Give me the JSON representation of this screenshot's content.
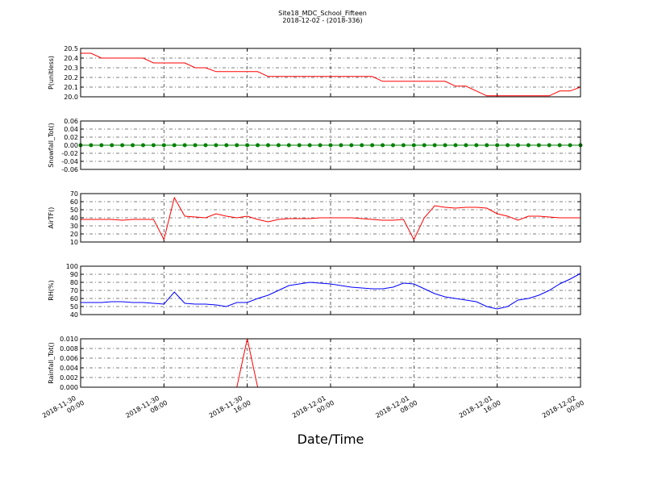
{
  "chart_data": [
    {
      "type": "line",
      "title": "Site18_MDC_School_Fifteen",
      "subtitle": "2018-12-02 - (2018-336)",
      "ylabel": "P(unitless)",
      "xlim": [
        "2018-11-30 00:00",
        "2018-12-02 00:00"
      ],
      "xticks": [
        "2018-11-30 00:00",
        "2018-11-30 08:00",
        "2018-11-30 16:00",
        "2018-12-01 00:00",
        "2018-12-01 08:00",
        "2018-12-01 16:00",
        "2018-12-02 00:00"
      ],
      "ylim": [
        20.0,
        20.5
      ],
      "yticks": [
        {
          "value": 20.0,
          "label": "20.0"
        },
        20.1,
        20.2,
        20.3,
        20.4,
        20.5
      ],
      "grid": true,
      "x": [
        "2018-11-30 00:00",
        "2018-11-30 01:00",
        "2018-11-30 02:00",
        "2018-11-30 03:00",
        "2018-11-30 04:00",
        "2018-11-30 05:00",
        "2018-11-30 06:00",
        "2018-11-30 07:00",
        "2018-11-30 08:00",
        "2018-11-30 09:00",
        "2018-11-30 10:00",
        "2018-11-30 11:00",
        "2018-11-30 12:00",
        "2018-11-30 13:00",
        "2018-11-30 14:00",
        "2018-11-30 15:00",
        "2018-11-30 16:00",
        "2018-11-30 17:00",
        "2018-11-30 18:00",
        "2018-11-30 19:00",
        "2018-11-30 20:00",
        "2018-11-30 21:00",
        "2018-11-30 22:00",
        "2018-11-30 23:00",
        "2018-12-01 00:00",
        "2018-12-01 01:00",
        "2018-12-01 02:00",
        "2018-12-01 03:00",
        "2018-12-01 04:00",
        "2018-12-01 05:00",
        "2018-12-01 06:00",
        "2018-12-01 07:00",
        "2018-12-01 08:00",
        "2018-12-01 09:00",
        "2018-12-01 10:00",
        "2018-12-01 11:00",
        "2018-12-01 12:00",
        "2018-12-01 13:00",
        "2018-12-01 14:00",
        "2018-12-01 15:00",
        "2018-12-01 16:00",
        "2018-12-01 17:00",
        "2018-12-01 18:00",
        "2018-12-01 19:00",
        "2018-12-01 20:00",
        "2018-12-01 21:00",
        "2018-12-01 22:00",
        "2018-12-01 23:00",
        "2018-12-02 00:00"
      ],
      "series": [
        {
          "name": "P",
          "color": "#ff0000",
          "values": [
            20.45,
            20.45,
            20.4,
            20.4,
            20.4,
            20.4,
            20.4,
            20.35,
            20.35,
            20.35,
            20.35,
            20.3,
            20.3,
            20.26,
            20.26,
            20.26,
            20.26,
            20.26,
            20.21,
            20.21,
            20.21,
            20.21,
            20.21,
            20.21,
            20.21,
            20.21,
            20.21,
            20.21,
            20.21,
            20.16,
            20.16,
            20.16,
            20.16,
            20.16,
            20.16,
            20.16,
            20.11,
            20.11,
            20.06,
            20.01,
            20.01,
            20.01,
            20.01,
            20.01,
            20.01,
            20.01,
            20.06,
            20.06,
            20.1
          ]
        }
      ]
    },
    {
      "type": "line",
      "ylabel": "Snowfall_Tot()",
      "marker": "o",
      "xlim": [
        "2018-11-30 00:00",
        "2018-12-02 00:00"
      ],
      "xticks": [
        "2018-11-30 00:00",
        "2018-11-30 08:00",
        "2018-11-30 16:00",
        "2018-12-01 00:00",
        "2018-12-01 08:00",
        "2018-12-01 16:00",
        "2018-12-02 00:00"
      ],
      "ylim": [
        -0.06,
        0.06
      ],
      "yticks": [
        -0.06,
        -0.04,
        -0.02,
        {
          "value": 0,
          "label": "0.00"
        },
        0.02,
        0.04,
        0.06
      ],
      "grid": true,
      "x": [
        "2018-11-30 00:00",
        "2018-11-30 01:00",
        "2018-11-30 02:00",
        "2018-11-30 03:00",
        "2018-11-30 04:00",
        "2018-11-30 05:00",
        "2018-11-30 06:00",
        "2018-11-30 07:00",
        "2018-11-30 08:00",
        "2018-11-30 09:00",
        "2018-11-30 10:00",
        "2018-11-30 11:00",
        "2018-11-30 12:00",
        "2018-11-30 13:00",
        "2018-11-30 14:00",
        "2018-11-30 15:00",
        "2018-11-30 16:00",
        "2018-11-30 17:00",
        "2018-11-30 18:00",
        "2018-11-30 19:00",
        "2018-11-30 20:00",
        "2018-11-30 21:00",
        "2018-11-30 22:00",
        "2018-11-30 23:00",
        "2018-12-01 00:00",
        "2018-12-01 01:00",
        "2018-12-01 02:00",
        "2018-12-01 03:00",
        "2018-12-01 04:00",
        "2018-12-01 05:00",
        "2018-12-01 06:00",
        "2018-12-01 07:00",
        "2018-12-01 08:00",
        "2018-12-01 09:00",
        "2018-12-01 10:00",
        "2018-12-01 11:00",
        "2018-12-01 12:00",
        "2018-12-01 13:00",
        "2018-12-01 14:00",
        "2018-12-01 15:00",
        "2018-12-01 16:00",
        "2018-12-01 17:00",
        "2018-12-01 18:00",
        "2018-12-01 19:00",
        "2018-12-01 20:00",
        "2018-12-01 21:00",
        "2018-12-01 22:00",
        "2018-12-01 23:00",
        "2018-12-02 00:00"
      ],
      "series": [
        {
          "name": "Snowfall_Tot",
          "color": "#008000",
          "values": [
            0,
            0,
            0,
            0,
            0,
            0,
            0,
            0,
            0,
            0,
            0,
            0,
            0,
            0,
            0,
            0,
            0,
            0,
            0,
            0,
            0,
            0,
            0,
            0,
            0,
            0,
            0,
            0,
            0,
            0,
            0,
            0,
            0,
            0,
            0,
            0,
            0,
            0,
            0,
            0,
            0,
            0,
            0,
            0,
            0,
            0,
            0,
            0,
            0
          ]
        }
      ]
    },
    {
      "type": "line",
      "ylabel": "AirTF()",
      "xlim": [
        "2018-11-30 00:00",
        "2018-12-02 00:00"
      ],
      "xticks": [
        "2018-11-30 00:00",
        "2018-11-30 08:00",
        "2018-11-30 16:00",
        "2018-12-01 00:00",
        "2018-12-01 08:00",
        "2018-12-01 16:00",
        "2018-12-02 00:00"
      ],
      "ylim": [
        10,
        70
      ],
      "yticks": [
        10,
        20,
        30,
        40,
        50,
        60,
        70
      ],
      "grid": true,
      "x": [
        "2018-11-30 00:00",
        "2018-11-30 01:00",
        "2018-11-30 02:00",
        "2018-11-30 03:00",
        "2018-11-30 04:00",
        "2018-11-30 05:00",
        "2018-11-30 06:00",
        "2018-11-30 07:00",
        "2018-11-30 08:00",
        "2018-11-30 09:00",
        "2018-11-30 10:00",
        "2018-11-30 11:00",
        "2018-11-30 12:00",
        "2018-11-30 13:00",
        "2018-11-30 14:00",
        "2018-11-30 15:00",
        "2018-11-30 16:00",
        "2018-11-30 17:00",
        "2018-11-30 18:00",
        "2018-11-30 19:00",
        "2018-11-30 20:00",
        "2018-11-30 21:00",
        "2018-11-30 22:00",
        "2018-11-30 23:00",
        "2018-12-01 00:00",
        "2018-12-01 01:00",
        "2018-12-01 02:00",
        "2018-12-01 03:00",
        "2018-12-01 04:00",
        "2018-12-01 05:00",
        "2018-12-01 06:00",
        "2018-12-01 07:00",
        "2018-12-01 08:00",
        "2018-12-01 09:00",
        "2018-12-01 10:00",
        "2018-12-01 11:00",
        "2018-12-01 12:00",
        "2018-12-01 13:00",
        "2018-12-01 14:00",
        "2018-12-01 15:00",
        "2018-12-01 16:00",
        "2018-12-01 17:00",
        "2018-12-01 18:00",
        "2018-12-01 19:00",
        "2018-12-01 20:00",
        "2018-12-01 21:00",
        "2018-12-01 22:00",
        "2018-12-01 23:00",
        "2018-12-02 00:00"
      ],
      "series": [
        {
          "name": "AirTF",
          "color": "#ff0000",
          "values": [
            38,
            38,
            38,
            38,
            37,
            38,
            38,
            38,
            13,
            65,
            42,
            41,
            40,
            45,
            42,
            40,
            42,
            38,
            35,
            38,
            39,
            39,
            39,
            40,
            40,
            40,
            40,
            39,
            38,
            37,
            37,
            38,
            13,
            40,
            55,
            53,
            52,
            53,
            53,
            52,
            45,
            42,
            37,
            42,
            42,
            41,
            40,
            40,
            40
          ]
        }
      ]
    },
    {
      "type": "line",
      "ylabel": "RH(%)",
      "xlim": [
        "2018-11-30 00:00",
        "2018-12-02 00:00"
      ],
      "xticks": [
        "2018-11-30 00:00",
        "2018-11-30 08:00",
        "2018-11-30 16:00",
        "2018-12-01 00:00",
        "2018-12-01 08:00",
        "2018-12-01 16:00",
        "2018-12-02 00:00"
      ],
      "ylim": [
        40,
        100
      ],
      "yticks": [
        40,
        50,
        60,
        70,
        80,
        90,
        100
      ],
      "grid": true,
      "x": [
        "2018-11-30 00:00",
        "2018-11-30 01:00",
        "2018-11-30 02:00",
        "2018-11-30 03:00",
        "2018-11-30 04:00",
        "2018-11-30 05:00",
        "2018-11-30 06:00",
        "2018-11-30 07:00",
        "2018-11-30 08:00",
        "2018-11-30 09:00",
        "2018-11-30 10:00",
        "2018-11-30 11:00",
        "2018-11-30 12:00",
        "2018-11-30 13:00",
        "2018-11-30 14:00",
        "2018-11-30 15:00",
        "2018-11-30 16:00",
        "2018-11-30 17:00",
        "2018-11-30 18:00",
        "2018-11-30 19:00",
        "2018-11-30 20:00",
        "2018-11-30 21:00",
        "2018-11-30 22:00",
        "2018-11-30 23:00",
        "2018-12-01 00:00",
        "2018-12-01 01:00",
        "2018-12-01 02:00",
        "2018-12-01 03:00",
        "2018-12-01 04:00",
        "2018-12-01 05:00",
        "2018-12-01 06:00",
        "2018-12-01 07:00",
        "2018-12-01 08:00",
        "2018-12-01 09:00",
        "2018-12-01 10:00",
        "2018-12-01 11:00",
        "2018-12-01 12:00",
        "2018-12-01 13:00",
        "2018-12-01 14:00",
        "2018-12-01 15:00",
        "2018-12-01 16:00",
        "2018-12-01 17:00",
        "2018-12-01 18:00",
        "2018-12-01 19:00",
        "2018-12-01 20:00",
        "2018-12-01 21:00",
        "2018-12-01 22:00",
        "2018-12-01 23:00",
        "2018-12-02 00:00"
      ],
      "series": [
        {
          "name": "RH",
          "color": "#0000ff",
          "values": [
            55,
            55,
            55,
            56,
            56,
            55,
            55,
            54,
            53,
            68,
            54,
            53,
            53,
            52,
            50,
            55,
            55,
            60,
            64,
            70,
            76,
            78,
            80,
            79,
            78,
            76,
            74,
            73,
            72,
            72,
            74,
            79,
            78,
            72,
            66,
            62,
            60,
            58,
            56,
            50,
            47,
            50,
            58,
            60,
            64,
            70,
            78,
            84,
            91
          ]
        }
      ]
    },
    {
      "type": "line",
      "ylabel": "Rainfall_Tot()",
      "xlabel": "Date/Time",
      "xlim": [
        "2018-11-30 00:00",
        "2018-12-02 00:00"
      ],
      "xticks": [
        "2018-11-30 00:00",
        "2018-11-30 08:00",
        "2018-11-30 16:00",
        "2018-12-01 00:00",
        "2018-12-01 08:00",
        "2018-12-01 16:00",
        "2018-12-02 00:00"
      ],
      "ylim": [
        0,
        0.01
      ],
      "yticks": [
        {
          "value": 0,
          "label": "0.000"
        },
        {
          "value": 0.002,
          "label": "0.002"
        },
        {
          "value": 0.004,
          "label": "0.004"
        },
        {
          "value": 0.006,
          "label": "0.006"
        },
        {
          "value": 0.008,
          "label": "0.008"
        },
        {
          "value": 0.01,
          "label": "0.010"
        }
      ],
      "grid": true,
      "x": [
        "2018-11-30 00:00",
        "2018-11-30 01:00",
        "2018-11-30 02:00",
        "2018-11-30 03:00",
        "2018-11-30 04:00",
        "2018-11-30 05:00",
        "2018-11-30 06:00",
        "2018-11-30 07:00",
        "2018-11-30 08:00",
        "2018-11-30 09:00",
        "2018-11-30 10:00",
        "2018-11-30 11:00",
        "2018-11-30 12:00",
        "2018-11-30 13:00",
        "2018-11-30 14:00",
        "2018-11-30 15:00",
        "2018-11-30 16:00",
        "2018-11-30 17:00",
        "2018-11-30 18:00",
        "2018-11-30 19:00",
        "2018-11-30 20:00",
        "2018-11-30 21:00",
        "2018-11-30 22:00",
        "2018-11-30 23:00",
        "2018-12-01 00:00",
        "2018-12-01 01:00",
        "2018-12-01 02:00",
        "2018-12-01 03:00",
        "2018-12-01 04:00",
        "2018-12-01 05:00",
        "2018-12-01 06:00",
        "2018-12-01 07:00",
        "2018-12-01 08:00",
        "2018-12-01 09:00",
        "2018-12-01 10:00",
        "2018-12-01 11:00",
        "2018-12-01 12:00",
        "2018-12-01 13:00",
        "2018-12-01 14:00",
        "2018-12-01 15:00",
        "2018-12-01 16:00",
        "2018-12-01 17:00",
        "2018-12-01 18:00",
        "2018-12-01 19:00",
        "2018-12-01 20:00",
        "2018-12-01 21:00",
        "2018-12-01 22:00",
        "2018-12-01 23:00",
        "2018-12-02 00:00"
      ],
      "series": [
        {
          "name": "Rainfall_Tot",
          "color": "#ff0000",
          "values": [
            0,
            0,
            0,
            0,
            0,
            0,
            0,
            0,
            0,
            0,
            0,
            0,
            0,
            0,
            0,
            0,
            0.01,
            0,
            0,
            0,
            0,
            0,
            0,
            0,
            0,
            0,
            0,
            0,
            0,
            0,
            0,
            0,
            0,
            0,
            0,
            0,
            0,
            0,
            0,
            0,
            0,
            0,
            0,
            0,
            0,
            0,
            0,
            0,
            0
          ]
        }
      ]
    }
  ]
}
